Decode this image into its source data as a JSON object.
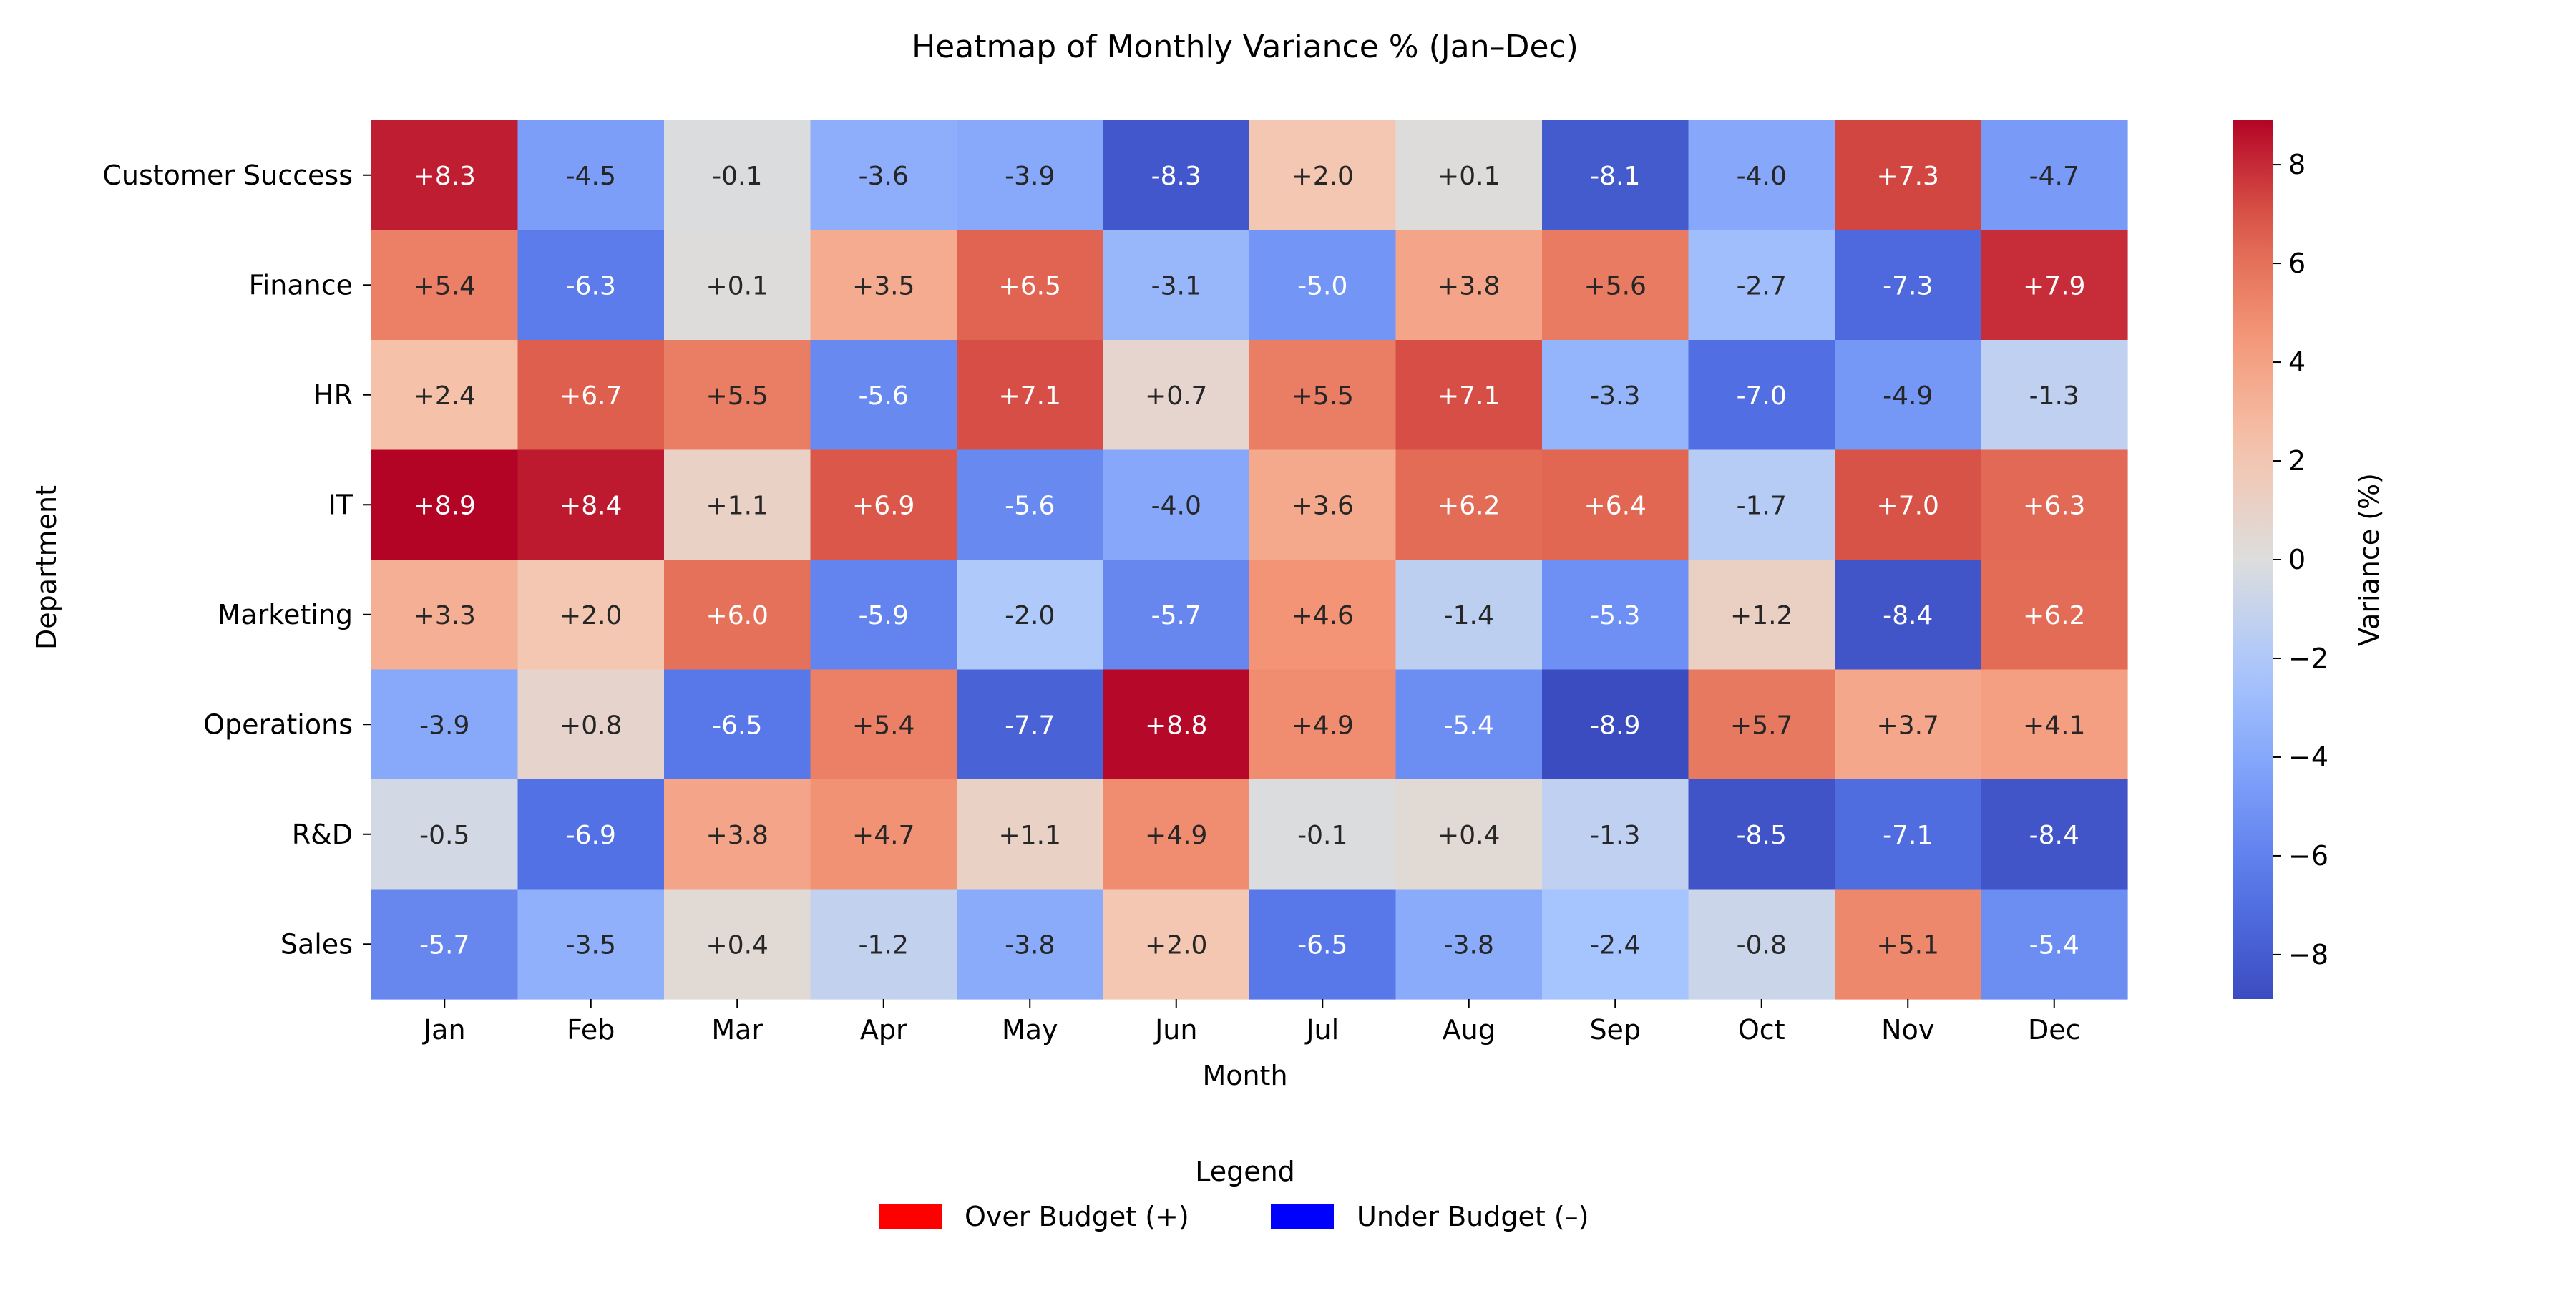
{
  "chart_data": {
    "type": "heatmap",
    "title": "Heatmap of Monthly Variance % (Jan–Dec)",
    "xlabel": "Month",
    "ylabel": "Department",
    "x": [
      "Jan",
      "Feb",
      "Mar",
      "Apr",
      "May",
      "Jun",
      "Jul",
      "Aug",
      "Sep",
      "Oct",
      "Nov",
      "Dec"
    ],
    "y": [
      "Customer Success",
      "Finance",
      "HR",
      "IT",
      "Marketing",
      "Operations",
      "R&D",
      "Sales"
    ],
    "values": [
      [
        8.3,
        -4.5,
        -0.1,
        -3.6,
        -3.9,
        -8.3,
        2.0,
        0.1,
        -8.1,
        -4.0,
        7.3,
        -4.7
      ],
      [
        5.4,
        -6.3,
        0.1,
        3.5,
        6.5,
        -3.1,
        -5.0,
        3.8,
        5.6,
        -2.7,
        -7.3,
        7.9
      ],
      [
        2.4,
        6.7,
        5.5,
        -5.6,
        7.1,
        0.7,
        5.5,
        7.1,
        -3.3,
        -7.0,
        -4.9,
        -1.3
      ],
      [
        8.9,
        8.4,
        1.1,
        6.9,
        -5.6,
        -4.0,
        3.6,
        6.2,
        6.4,
        -1.7,
        7.0,
        6.3
      ],
      [
        3.3,
        2.0,
        6.0,
        -5.9,
        -2.0,
        -5.7,
        4.6,
        -1.4,
        -5.3,
        1.2,
        -8.4,
        6.2
      ],
      [
        -3.9,
        0.8,
        -6.5,
        5.4,
        -7.7,
        8.8,
        4.9,
        -5.4,
        -8.9,
        5.7,
        3.7,
        4.1
      ],
      [
        -0.5,
        -6.9,
        3.8,
        4.7,
        1.1,
        4.9,
        -0.1,
        0.4,
        -1.3,
        -8.5,
        -7.1,
        -8.4
      ],
      [
        -5.7,
        -3.5,
        0.4,
        -1.2,
        -3.8,
        2.0,
        -6.5,
        -3.8,
        -2.4,
        -0.8,
        5.1,
        -5.4
      ]
    ],
    "value_labels": [
      [
        "+8.3",
        "-4.5",
        "-0.1",
        "-3.6",
        "-3.9",
        "-8.3",
        "+2.0",
        "+0.1",
        "-8.1",
        "-4.0",
        "+7.3",
        "-4.7"
      ],
      [
        "+5.4",
        "-6.3",
        "+0.1",
        "+3.5",
        "+6.5",
        "-3.1",
        "-5.0",
        "+3.8",
        "+5.6",
        "-2.7",
        "-7.3",
        "+7.9"
      ],
      [
        "+2.4",
        "+6.7",
        "+5.5",
        "-5.6",
        "+7.1",
        "+0.7",
        "+5.5",
        "+7.1",
        "-3.3",
        "-7.0",
        "-4.9",
        "-1.3"
      ],
      [
        "+8.9",
        "+8.4",
        "+1.1",
        "+6.9",
        "-5.6",
        "-4.0",
        "+3.6",
        "+6.2",
        "+6.4",
        "-1.7",
        "+7.0",
        "+6.3"
      ],
      [
        "+3.3",
        "+2.0",
        "+6.0",
        "-5.9",
        "-2.0",
        "-5.7",
        "+4.6",
        "-1.4",
        "-5.3",
        "+1.2",
        "-8.4",
        "+6.2"
      ],
      [
        "-3.9",
        "+0.8",
        "-6.5",
        "+5.4",
        "-7.7",
        "+8.8",
        "+4.9",
        "-5.4",
        "-8.9",
        "+5.7",
        "+3.7",
        "+4.1"
      ],
      [
        "-0.5",
        "-6.9",
        "+3.8",
        "+4.7",
        "+1.1",
        "+4.9",
        "-0.1",
        "+0.4",
        "-1.3",
        "-8.5",
        "-7.1",
        "-8.4"
      ],
      [
        "-5.7",
        "-3.5",
        "+0.4",
        "-1.2",
        "-3.8",
        "+2.0",
        "-6.5",
        "-3.8",
        "-2.4",
        "-0.8",
        "+5.1",
        "-5.4"
      ]
    ],
    "colormap": "coolwarm",
    "vmin": -8.9,
    "vmax": 8.9,
    "colorbar": {
      "label": "Variance (%)",
      "ticks": [
        -8,
        -6,
        -4,
        -2,
        0,
        2,
        4,
        6,
        8
      ],
      "tick_labels": [
        "−8",
        "−6",
        "−4",
        "−2",
        "0",
        "2",
        "4",
        "6",
        "8"
      ]
    },
    "legend": {
      "title": "Legend",
      "placement": "bottom-center",
      "entries": [
        {
          "label": "Over Budget (+)",
          "color": "#ff0000"
        },
        {
          "label": "Under Budget (–)",
          "color": "#0000ff"
        }
      ]
    },
    "grid": false
  }
}
